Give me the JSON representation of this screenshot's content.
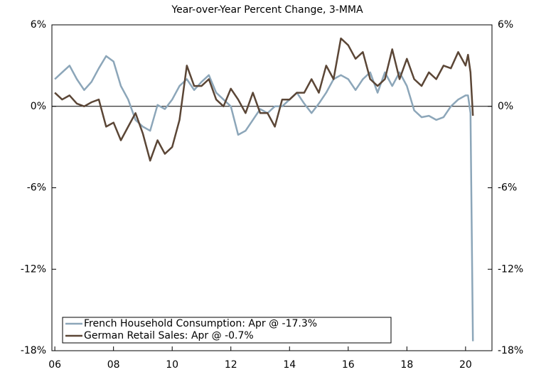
{
  "chart_data": {
    "type": "line",
    "subtitle": "Year-over-Year Percent Change, 3-MMA",
    "x": [
      2006,
      2006.25,
      2006.5,
      2006.75,
      2007,
      2007.25,
      2007.5,
      2007.75,
      2008,
      2008.25,
      2008.5,
      2008.75,
      2009,
      2009.25,
      2009.5,
      2009.75,
      2010,
      2010.25,
      2010.5,
      2010.75,
      2011,
      2011.25,
      2011.5,
      2011.75,
      2012,
      2012.25,
      2012.5,
      2012.75,
      2013,
      2013.25,
      2013.5,
      2013.75,
      2014,
      2014.25,
      2014.5,
      2014.75,
      2015,
      2015.25,
      2015.5,
      2015.75,
      2016,
      2016.25,
      2016.5,
      2016.75,
      2017,
      2017.25,
      2017.5,
      2017.75,
      2018,
      2018.25,
      2018.5,
      2018.75,
      2019,
      2019.25,
      2019.5,
      2019.75,
      2020,
      2020.083,
      2020.167,
      2020.25
    ],
    "series": [
      {
        "name": "French Household Consumption: Apr @ -17.3%",
        "color": "#8ca6b9",
        "values": [
          2.0,
          2.5,
          3.0,
          2.0,
          1.2,
          1.8,
          2.8,
          3.7,
          3.3,
          1.5,
          0.5,
          -1.0,
          -1.5,
          -1.8,
          0.1,
          -0.2,
          0.5,
          1.5,
          2.0,
          1.2,
          1.8,
          2.3,
          1.0,
          0.5,
          0.0,
          -2.1,
          -1.8,
          -1.0,
          -0.2,
          -0.5,
          0.0,
          0.0,
          0.5,
          1.0,
          0.2,
          -0.5,
          0.2,
          1.0,
          2.0,
          2.3,
          2.0,
          1.2,
          2.0,
          2.5,
          1.0,
          2.5,
          1.5,
          2.5,
          1.5,
          -0.3,
          -0.8,
          -0.7,
          -1.0,
          -0.8,
          0.0,
          0.5,
          0.8,
          0.8,
          -0.5,
          -17.3
        ]
      },
      {
        "name": "German Retail Sales: Apr @ -0.7%",
        "color": "#5b4636",
        "values": [
          1.0,
          0.5,
          0.8,
          0.2,
          0.0,
          0.3,
          0.5,
          -1.5,
          -1.2,
          -2.5,
          -1.5,
          -0.5,
          -2.0,
          -4.0,
          -2.5,
          -3.5,
          -3.0,
          -1.0,
          3.0,
          1.5,
          1.5,
          2.0,
          0.5,
          0.0,
          1.3,
          0.5,
          -0.5,
          1.0,
          -0.5,
          -0.5,
          -1.5,
          0.5,
          0.5,
          1.0,
          1.0,
          2.0,
          1.0,
          3.0,
          2.0,
          5.0,
          4.5,
          3.5,
          4.0,
          2.0,
          1.5,
          2.0,
          4.2,
          2.0,
          3.5,
          2.0,
          1.5,
          2.5,
          2.0,
          3.0,
          2.8,
          4.0,
          3.0,
          3.8,
          2.5,
          -0.7
        ]
      }
    ],
    "xlim": [
      2005.9,
      2020.9
    ],
    "xticks": [
      {
        "value": 2006,
        "label": "06"
      },
      {
        "value": 2008,
        "label": "08"
      },
      {
        "value": 2010,
        "label": "10"
      },
      {
        "value": 2012,
        "label": "12"
      },
      {
        "value": 2014,
        "label": "14"
      },
      {
        "value": 2016,
        "label": "16"
      },
      {
        "value": 2018,
        "label": "18"
      },
      {
        "value": 2020,
        "label": "20"
      }
    ],
    "ylim": [
      -18,
      6
    ],
    "yticks": [
      {
        "value": -18,
        "label": "-18%"
      },
      {
        "value": -12,
        "label": "-12%"
      },
      {
        "value": -6,
        "label": "-6%"
      },
      {
        "value": 0,
        "label": "0%"
      },
      {
        "value": 6,
        "label": "6%"
      }
    ],
    "legend": "lower left"
  }
}
